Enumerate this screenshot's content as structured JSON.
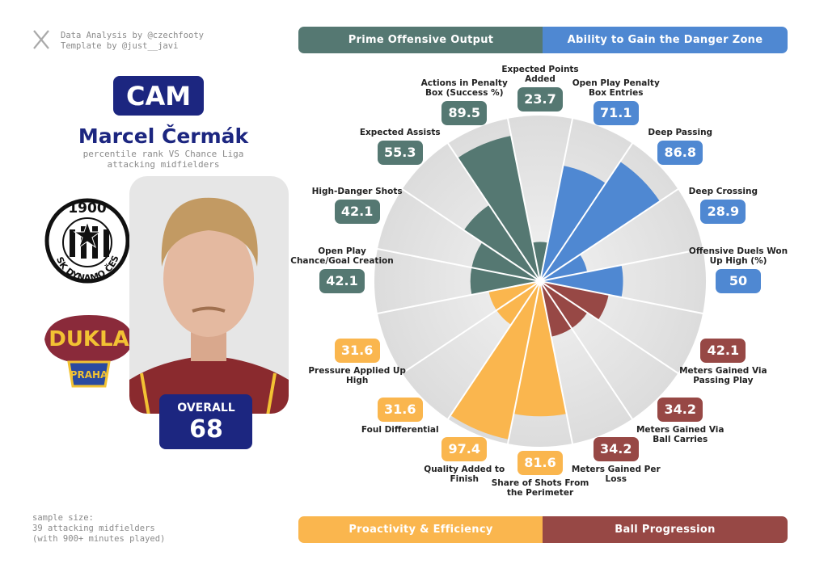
{
  "header": {
    "credit_1": "Data Analysis by @czechfooty",
    "credit_2": "Template by @just__javi"
  },
  "player": {
    "position": "CAM",
    "name": "Marcel Čermák",
    "subtitle": "percentile rank VS Chance Liga attacking midfielders",
    "overall_label": "OVERALL",
    "overall": 68
  },
  "logos": {
    "club_year": "1900",
    "club_name": "SK DYNAMO ČESKÉ",
    "opponent": "DUKLA",
    "opponent_city": "PRAHA"
  },
  "footer": {
    "sample_1": "sample size:",
    "sample_2": "39 attacking midfielders",
    "sample_3": "(with 900+ minutes played)"
  },
  "chart_data": {
    "type": "pizza",
    "groups": [
      {
        "name": "Prime Offensive Output",
        "color": "#557872"
      },
      {
        "name": "Ability to Gain the Danger Zone",
        "color": "#4f88d2"
      },
      {
        "name": "Proactivity & Efficiency",
        "color": "#fab64e"
      },
      {
        "name": "Ball Progression",
        "color": "#974845"
      }
    ],
    "categories": [
      "Expected Points Added",
      "Open Play Penalty Box Entries",
      "Deep Passing",
      "Deep Crossing",
      "Offensive Duels Won Up High (%)",
      "Meters Gained Via Passing Play",
      "Meters Gained Via Ball Carries",
      "Meters Gained Per Loss",
      "Share of Shots From the Perimeter",
      "Quality Added to Finish",
      "Foul Differential",
      "Pressure Applied Up High",
      "Open Play Chance/Goal Creation",
      "High-Danger Shots",
      "Expected Assists",
      "Actions in Penalty Box (Success %)"
    ],
    "values": [
      23.7,
      71.1,
      86.8,
      28.9,
      50,
      42.1,
      34.2,
      34.2,
      81.6,
      97.4,
      31.6,
      31.6,
      42.1,
      42.1,
      55.3,
      89.5
    ],
    "colors": [
      "#557872",
      "#4f88d2",
      "#4f88d2",
      "#4f88d2",
      "#4f88d2",
      "#974845",
      "#974845",
      "#974845",
      "#fab64e",
      "#fab64e",
      "#fab64e",
      "#fab64e",
      "#557872",
      "#557872",
      "#557872",
      "#557872"
    ],
    "ylim": [
      0,
      100
    ]
  }
}
